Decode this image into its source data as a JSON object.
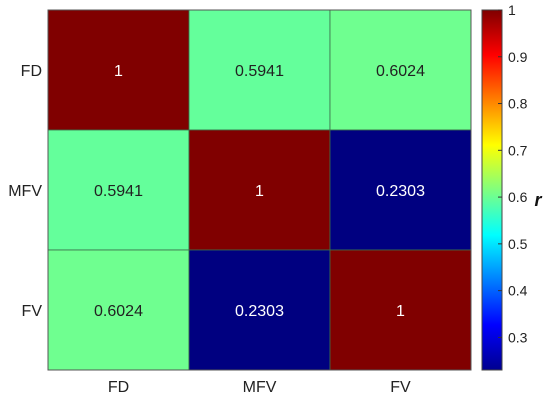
{
  "chart_data": {
    "type": "heatmap",
    "x_labels": [
      "FD",
      "MFV",
      "FV"
    ],
    "y_labels": [
      "FD",
      "MFV",
      "FV"
    ],
    "values": [
      [
        1,
        0.5941,
        0.6024
      ],
      [
        0.5941,
        1,
        0.2303
      ],
      [
        0.6024,
        0.2303,
        1
      ]
    ],
    "value_labels": [
      [
        "1",
        "0.5941",
        "0.6024"
      ],
      [
        "0.5941",
        "1",
        "0.2303"
      ],
      [
        "0.6024",
        "0.2303",
        "1"
      ]
    ],
    "colorbar": {
      "title": "r",
      "range": [
        0.2303,
        1
      ],
      "ticks": [
        0.3,
        0.4,
        0.5,
        0.6,
        0.7,
        0.8,
        0.9,
        1
      ],
      "tick_labels": [
        "0.3",
        "0.4",
        "0.5",
        "0.6",
        "0.7",
        "0.8",
        "0.9",
        "1"
      ],
      "colormap": "jet"
    },
    "title": "",
    "xlabel": "",
    "ylabel": "",
    "grid": false
  }
}
